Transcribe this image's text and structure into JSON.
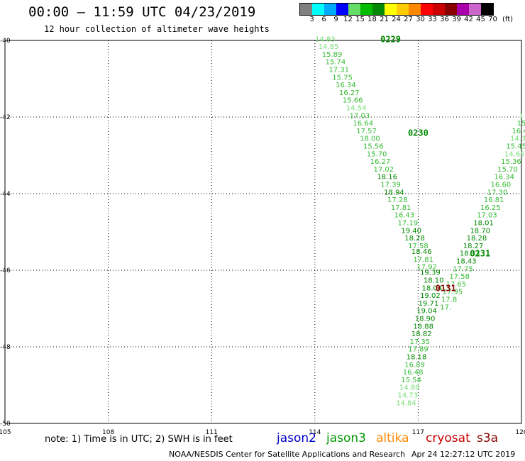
{
  "header": {
    "title": "00:00 – 11:59 UTC 04/23/2019",
    "subtitle": "12 hour collection of altimeter wave heights"
  },
  "scale": {
    "unit": "(ft)",
    "bins": [
      {
        "label": "3",
        "color": "#808080"
      },
      {
        "label": "6",
        "color": "#00ffff"
      },
      {
        "label": "9",
        "color": "#00aaff"
      },
      {
        "label": "12",
        "color": "#0000ff"
      },
      {
        "label": "15",
        "color": "#66dd66"
      },
      {
        "label": "18",
        "color": "#00bb00"
      },
      {
        "label": "21",
        "color": "#008800"
      },
      {
        "label": "24",
        "color": "#ffff00"
      },
      {
        "label": "27",
        "color": "#ffcc00"
      },
      {
        "label": "30",
        "color": "#ff8800"
      },
      {
        "label": "33",
        "color": "#ff0000"
      },
      {
        "label": "36",
        "color": "#cc0000"
      },
      {
        "label": "39",
        "color": "#880000"
      },
      {
        "label": "42",
        "color": "#aa00aa"
      },
      {
        "label": "45",
        "color": "#cc66cc"
      },
      {
        "label": "70",
        "color": "#000000"
      }
    ]
  },
  "map": {
    "lon_ticks": [
      "105",
      "108",
      "111",
      "114",
      "117",
      "120"
    ],
    "lat_ticks": [
      "-40",
      "-42",
      "-44",
      "-46",
      "-48",
      "-50"
    ],
    "lon_range": [
      105,
      120
    ],
    "lat_range": [
      -40,
      -50
    ],
    "grid": "dotted",
    "colors": {
      "light": "#77dd77",
      "medium": "#33bb33",
      "dark": "#008800",
      "cryosat": "#880000"
    },
    "tracks": [
      {
        "pass": "0229",
        "pass_color": "#008800",
        "pass_lon": 116.2,
        "pass_lat": -39.95,
        "points": [
          {
            "lon": 114.3,
            "lat": -39.95,
            "value": "14.83",
            "tone": "light"
          },
          {
            "lon": 114.4,
            "lat": -40.15,
            "value": "14.85",
            "tone": "light"
          },
          {
            "lon": 114.5,
            "lat": -40.35,
            "value": "15.89",
            "tone": "medium"
          },
          {
            "lon": 114.6,
            "lat": -40.55,
            "value": "15.74",
            "tone": "medium"
          },
          {
            "lon": 114.7,
            "lat": -40.75,
            "value": "17.31",
            "tone": "medium"
          },
          {
            "lon": 114.8,
            "lat": -40.95,
            "value": "15.75",
            "tone": "medium"
          },
          {
            "lon": 114.9,
            "lat": -41.15,
            "value": "16.34",
            "tone": "medium"
          },
          {
            "lon": 115.0,
            "lat": -41.35,
            "value": "16.27",
            "tone": "medium"
          },
          {
            "lon": 115.1,
            "lat": -41.55,
            "value": "15.66",
            "tone": "medium"
          },
          {
            "lon": 115.2,
            "lat": -41.75,
            "value": "14.54",
            "tone": "light"
          },
          {
            "lon": 115.3,
            "lat": -41.95,
            "value": "17.03",
            "tone": "medium"
          },
          {
            "lon": 115.4,
            "lat": -42.15,
            "value": "16.64",
            "tone": "medium"
          },
          {
            "lon": 115.5,
            "lat": -42.35,
            "value": "17.57",
            "tone": "medium"
          }
        ]
      },
      {
        "pass": "0230",
        "pass_color": "#008800",
        "pass_lon": 117.0,
        "pass_lat": -42.4,
        "points": [
          {
            "lon": 115.6,
            "lat": -42.55,
            "value": "18.00",
            "tone": "medium"
          },
          {
            "lon": 115.7,
            "lat": -42.75,
            "value": "15.56",
            "tone": "medium"
          },
          {
            "lon": 115.8,
            "lat": -42.95,
            "value": "15.70",
            "tone": "medium"
          },
          {
            "lon": 115.9,
            "lat": -43.15,
            "value": "16.27",
            "tone": "medium"
          },
          {
            "lon": 116.0,
            "lat": -43.35,
            "value": "17.02",
            "tone": "medium"
          },
          {
            "lon": 116.1,
            "lat": -43.55,
            "value": "18.16",
            "tone": "dark"
          },
          {
            "lon": 116.2,
            "lat": -43.75,
            "value": "17.39",
            "tone": "medium"
          },
          {
            "lon": 116.3,
            "lat": -43.95,
            "value": "18.94",
            "tone": "dark"
          },
          {
            "lon": 116.4,
            "lat": -44.15,
            "value": "17.28",
            "tone": "medium"
          },
          {
            "lon": 116.5,
            "lat": -44.35,
            "value": "17.81",
            "tone": "medium"
          },
          {
            "lon": 116.6,
            "lat": -44.55,
            "value": "16.43",
            "tone": "medium"
          },
          {
            "lon": 116.7,
            "lat": -44.75,
            "value": "17.19",
            "tone": "medium"
          },
          {
            "lon": 116.8,
            "lat": -44.95,
            "value": "19.40",
            "tone": "dark"
          },
          {
            "lon": 116.9,
            "lat": -45.15,
            "value": "18.28",
            "tone": "dark"
          },
          {
            "lon": 117.0,
            "lat": -45.35,
            "value": "17.58",
            "tone": "medium"
          },
          {
            "lon": 117.1,
            "lat": -45.5,
            "value": "18.46",
            "tone": "dark"
          },
          {
            "lon": 117.15,
            "lat": -45.7,
            "value": "17.81",
            "tone": "medium"
          },
          {
            "lon": 117.25,
            "lat": -45.9,
            "value": "17.92",
            "tone": "medium"
          },
          {
            "lon": 117.35,
            "lat": -46.05,
            "value": "19.39",
            "tone": "dark"
          }
        ]
      },
      {
        "pass": "0231",
        "pass_color": "#008800",
        "pass_lon": 118.8,
        "pass_lat": -45.55,
        "points": [
          {
            "lon": 120.0,
            "lat": -41.95,
            "value": "1",
            "tone": "light"
          },
          {
            "lon": 120.0,
            "lat": -42.15,
            "value": "15",
            "tone": "medium"
          },
          {
            "lon": 119.95,
            "lat": -42.35,
            "value": "16.4",
            "tone": "medium"
          },
          {
            "lon": 119.9,
            "lat": -42.55,
            "value": "14.3",
            "tone": "light"
          },
          {
            "lon": 119.85,
            "lat": -42.75,
            "value": "15.45",
            "tone": "medium"
          },
          {
            "lon": 119.8,
            "lat": -42.95,
            "value": "14.65",
            "tone": "light"
          },
          {
            "lon": 119.7,
            "lat": -43.15,
            "value": "15.36",
            "tone": "medium"
          },
          {
            "lon": 119.6,
            "lat": -43.35,
            "value": "15.70",
            "tone": "medium"
          },
          {
            "lon": 119.5,
            "lat": -43.55,
            "value": "16.34",
            "tone": "medium"
          },
          {
            "lon": 119.4,
            "lat": -43.75,
            "value": "16.60",
            "tone": "medium"
          },
          {
            "lon": 119.3,
            "lat": -43.95,
            "value": "17.30",
            "tone": "medium"
          },
          {
            "lon": 119.2,
            "lat": -44.15,
            "value": "16.81",
            "tone": "medium"
          },
          {
            "lon": 119.1,
            "lat": -44.35,
            "value": "16.25",
            "tone": "medium"
          },
          {
            "lon": 119.0,
            "lat": -44.55,
            "value": "17.03",
            "tone": "medium"
          },
          {
            "lon": 118.9,
            "lat": -44.75,
            "value": "18.01",
            "tone": "dark"
          },
          {
            "lon": 118.8,
            "lat": -44.95,
            "value": "18.70",
            "tone": "dark"
          },
          {
            "lon": 118.7,
            "lat": -45.15,
            "value": "18.28",
            "tone": "dark"
          },
          {
            "lon": 118.6,
            "lat": -45.35,
            "value": "18.27",
            "tone": "dark"
          },
          {
            "lon": 118.5,
            "lat": -45.55,
            "value": "18.33",
            "tone": "dark"
          },
          {
            "lon": 118.4,
            "lat": -45.75,
            "value": "18.43",
            "tone": "dark"
          },
          {
            "lon": 118.3,
            "lat": -45.95,
            "value": "17.75",
            "tone": "medium"
          },
          {
            "lon": 118.2,
            "lat": -46.15,
            "value": "17.58",
            "tone": "medium"
          },
          {
            "lon": 118.1,
            "lat": -46.35,
            "value": "17.65",
            "tone": "medium"
          },
          {
            "lon": 118.0,
            "lat": -46.55,
            "value": "17.95",
            "tone": "medium"
          },
          {
            "lon": 117.9,
            "lat": -46.75,
            "value": "17.8",
            "tone": "medium"
          },
          {
            "lon": 117.8,
            "lat": -46.95,
            "value": "17.",
            "tone": "medium"
          }
        ]
      },
      {
        "pass": "0131",
        "pass_color": "#880000",
        "pass_lon": 117.8,
        "pass_lat": -46.45,
        "points": [
          {
            "lon": 117.45,
            "lat": -46.25,
            "value": "18.10",
            "tone": "dark"
          },
          {
            "lon": 117.4,
            "lat": -46.45,
            "value": "18.04",
            "tone": "dark"
          },
          {
            "lon": 117.35,
            "lat": -46.65,
            "value": "19.02",
            "tone": "dark"
          },
          {
            "lon": 117.3,
            "lat": -46.85,
            "value": "19.71",
            "tone": "dark"
          },
          {
            "lon": 117.25,
            "lat": -47.05,
            "value": "19.04",
            "tone": "dark"
          },
          {
            "lon": 117.2,
            "lat": -47.25,
            "value": "18.90",
            "tone": "dark"
          },
          {
            "lon": 117.15,
            "lat": -47.45,
            "value": "18.88",
            "tone": "dark"
          },
          {
            "lon": 117.1,
            "lat": -47.65,
            "value": "18.82",
            "tone": "dark"
          },
          {
            "lon": 117.05,
            "lat": -47.85,
            "value": "17.35",
            "tone": "medium"
          },
          {
            "lon": 117.0,
            "lat": -48.05,
            "value": "17.89",
            "tone": "medium"
          },
          {
            "lon": 116.95,
            "lat": -48.25,
            "value": "18.18",
            "tone": "dark"
          },
          {
            "lon": 116.9,
            "lat": -48.45,
            "value": "16.89",
            "tone": "medium"
          },
          {
            "lon": 116.85,
            "lat": -48.65,
            "value": "16.48",
            "tone": "medium"
          },
          {
            "lon": 116.8,
            "lat": -48.85,
            "value": "15.54",
            "tone": "medium"
          },
          {
            "lon": 116.75,
            "lat": -49.05,
            "value": "14.80",
            "tone": "light"
          },
          {
            "lon": 116.7,
            "lat": -49.25,
            "value": "14.73",
            "tone": "light"
          },
          {
            "lon": 116.65,
            "lat": -49.45,
            "value": "14.84",
            "tone": "light"
          }
        ]
      }
    ]
  },
  "footer": {
    "note": "note: 1) Time is in UTC; 2) SWH is in feet",
    "missions": [
      {
        "name": "jason2",
        "color": "#0000cc"
      },
      {
        "name": "jason3",
        "color": "#009900"
      },
      {
        "name": "altika",
        "color": "#ff8800"
      },
      {
        "name": "cryosat",
        "color": "#cc0000"
      },
      {
        "name": "s3a",
        "color": "#880000"
      }
    ],
    "credit": "NOAA/NESDIS Center for Satellite Applications and Research",
    "timestamp": "Apr 24 12:27:12 UTC 2019"
  }
}
